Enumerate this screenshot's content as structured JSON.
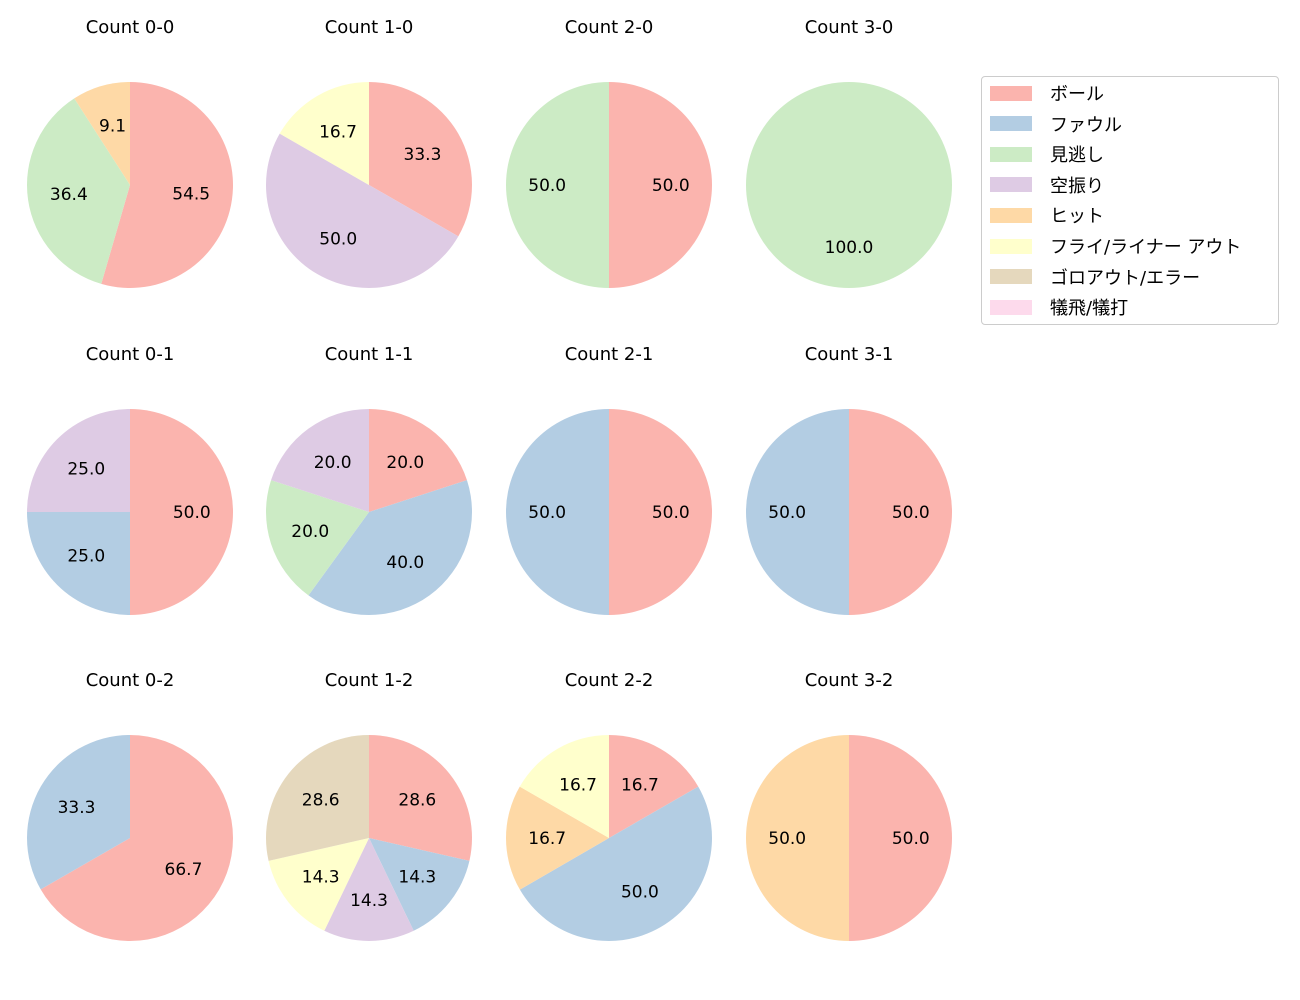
{
  "chart_data": {
    "type": "pie",
    "layout": {
      "rows": 3,
      "cols": 4,
      "start_angle": 90,
      "direction": "clockwise"
    },
    "legend": {
      "position": "upper right",
      "entries": [
        {
          "label": "ボール",
          "color": "#fbb4ae"
        },
        {
          "label": "ファウル",
          "color": "#b3cde3"
        },
        {
          "label": "見逃し",
          "color": "#ccebc5"
        },
        {
          "label": "空振り",
          "color": "#decbe4"
        },
        {
          "label": "ヒット",
          "color": "#fed9a6"
        },
        {
          "label": "フライ/ライナー アウト",
          "color": "#ffffcc"
        },
        {
          "label": "ゴロアウト/エラー",
          "color": "#e5d8bd"
        },
        {
          "label": "犠飛/犠打",
          "color": "#fddaec"
        }
      ]
    },
    "charts": [
      {
        "title": "Count 0-0",
        "row": 0,
        "col": 0,
        "slices": [
          {
            "category": "ボール",
            "value": 54.5
          },
          {
            "category": "見逃し",
            "value": 36.4
          },
          {
            "category": "ヒット",
            "value": 9.1
          }
        ]
      },
      {
        "title": "Count 1-0",
        "row": 0,
        "col": 1,
        "slices": [
          {
            "category": "ボール",
            "value": 33.3
          },
          {
            "category": "空振り",
            "value": 50.0
          },
          {
            "category": "フライ/ライナー アウト",
            "value": 16.7
          }
        ]
      },
      {
        "title": "Count 2-0",
        "row": 0,
        "col": 2,
        "slices": [
          {
            "category": "ボール",
            "value": 50.0
          },
          {
            "category": "見逃し",
            "value": 50.0
          }
        ]
      },
      {
        "title": "Count 3-0",
        "row": 0,
        "col": 3,
        "slices": [
          {
            "category": "見逃し",
            "value": 100.0
          }
        ]
      },
      {
        "title": "Count 0-1",
        "row": 1,
        "col": 0,
        "slices": [
          {
            "category": "ボール",
            "value": 50.0
          },
          {
            "category": "ファウル",
            "value": 25.0
          },
          {
            "category": "空振り",
            "value": 25.0
          }
        ]
      },
      {
        "title": "Count 1-1",
        "row": 1,
        "col": 1,
        "slices": [
          {
            "category": "ボール",
            "value": 20.0
          },
          {
            "category": "ファウル",
            "value": 40.0
          },
          {
            "category": "見逃し",
            "value": 20.0
          },
          {
            "category": "空振り",
            "value": 20.0
          }
        ]
      },
      {
        "title": "Count 2-1",
        "row": 1,
        "col": 2,
        "slices": [
          {
            "category": "ボール",
            "value": 50.0
          },
          {
            "category": "ファウル",
            "value": 50.0
          }
        ]
      },
      {
        "title": "Count 3-1",
        "row": 1,
        "col": 3,
        "slices": [
          {
            "category": "ボール",
            "value": 50.0
          },
          {
            "category": "ファウル",
            "value": 50.0
          }
        ]
      },
      {
        "title": "Count 0-2",
        "row": 2,
        "col": 0,
        "slices": [
          {
            "category": "ボール",
            "value": 66.7
          },
          {
            "category": "ファウル",
            "value": 33.3
          }
        ]
      },
      {
        "title": "Count 1-2",
        "row": 2,
        "col": 1,
        "slices": [
          {
            "category": "ボール",
            "value": 28.6
          },
          {
            "category": "ファウル",
            "value": 14.3
          },
          {
            "category": "空振り",
            "value": 14.3
          },
          {
            "category": "フライ/ライナー アウト",
            "value": 14.3
          },
          {
            "category": "ゴロアウト/エラー",
            "value": 28.6
          }
        ]
      },
      {
        "title": "Count 2-2",
        "row": 2,
        "col": 2,
        "slices": [
          {
            "category": "ボール",
            "value": 16.7
          },
          {
            "category": "ファウル",
            "value": 50.0
          },
          {
            "category": "ヒット",
            "value": 16.7
          },
          {
            "category": "フライ/ライナー アウト",
            "value": 16.7
          }
        ]
      },
      {
        "title": "Count 3-2",
        "row": 2,
        "col": 3,
        "slices": [
          {
            "category": "ボール",
            "value": 50.0
          },
          {
            "category": "ヒット",
            "value": 50.0
          }
        ]
      }
    ]
  }
}
